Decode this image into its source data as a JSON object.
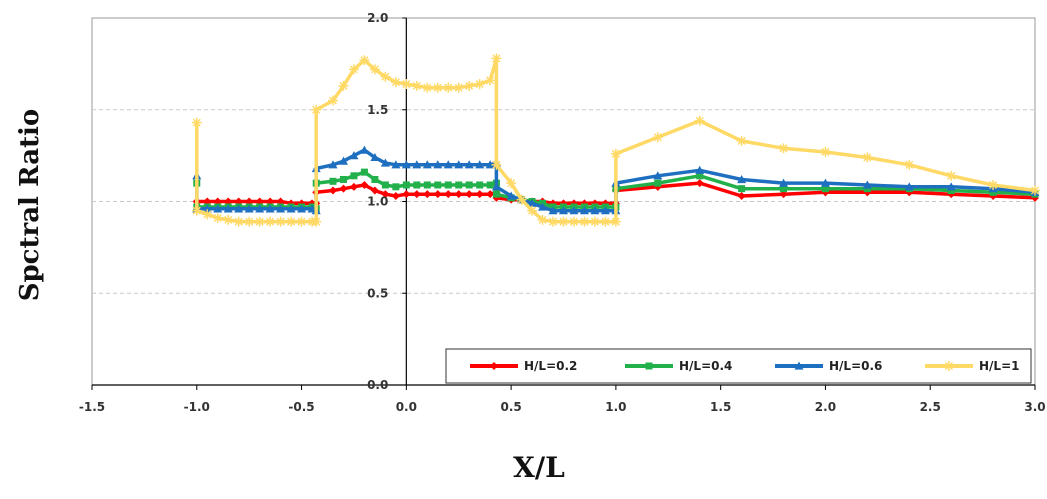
{
  "chart_data": {
    "type": "line",
    "xlabel": "X/L",
    "ylabel": "Spctral Ratio",
    "xlim": [
      -1.5,
      3.0
    ],
    "ylim": [
      0.0,
      2.0
    ],
    "xticks": [
      "-1.5",
      "-1.0",
      "-0.5",
      "0.0",
      "0.5",
      "1.0",
      "1.5",
      "2.0",
      "2.5",
      "3.0"
    ],
    "yticks": [
      "0.0",
      "0.5",
      "1.0",
      "1.5",
      "2.0"
    ],
    "grid": true,
    "legend_position": "bottom-right",
    "series": [
      {
        "name": "H/L=0.2",
        "color": "#ff0000",
        "marker": "diamond",
        "x": [
          -1.0,
          -1.0,
          -0.95,
          -0.9,
          -0.85,
          -0.8,
          -0.75,
          -0.7,
          -0.65,
          -0.6,
          -0.55,
          -0.5,
          -0.45,
          -0.43,
          -0.43,
          -0.35,
          -0.3,
          -0.25,
          -0.2,
          -0.15,
          -0.1,
          -0.05,
          0.0,
          0.05,
          0.1,
          0.15,
          0.2,
          0.25,
          0.3,
          0.35,
          0.4,
          0.43,
          0.43,
          0.5,
          0.55,
          0.6,
          0.65,
          0.7,
          0.75,
          0.8,
          0.85,
          0.9,
          0.95,
          1.0,
          1.0,
          1.2,
          1.4,
          1.6,
          1.8,
          2.0,
          2.2,
          2.4,
          2.6,
          2.8,
          3.0
        ],
        "y": [
          1.0,
          1.0,
          1.0,
          1.0,
          1.0,
          1.0,
          1.0,
          1.0,
          1.0,
          1.0,
          0.99,
          0.99,
          0.99,
          0.99,
          1.05,
          1.06,
          1.07,
          1.08,
          1.09,
          1.06,
          1.04,
          1.03,
          1.04,
          1.04,
          1.04,
          1.04,
          1.04,
          1.04,
          1.04,
          1.04,
          1.04,
          1.05,
          1.02,
          1.01,
          1.01,
          1.0,
          1.0,
          0.99,
          0.99,
          0.99,
          0.99,
          0.99,
          0.99,
          0.99,
          1.06,
          1.08,
          1.1,
          1.03,
          1.04,
          1.05,
          1.05,
          1.05,
          1.04,
          1.03,
          1.02
        ]
      },
      {
        "name": "H/L=0.4",
        "color": "#22b04a",
        "marker": "square",
        "x": [
          -1.0,
          -1.0,
          -0.95,
          -0.9,
          -0.85,
          -0.8,
          -0.75,
          -0.7,
          -0.65,
          -0.6,
          -0.55,
          -0.5,
          -0.45,
          -0.43,
          -0.43,
          -0.35,
          -0.3,
          -0.25,
          -0.2,
          -0.15,
          -0.1,
          -0.05,
          0.0,
          0.05,
          0.1,
          0.15,
          0.2,
          0.25,
          0.3,
          0.35,
          0.4,
          0.43,
          0.43,
          0.5,
          0.55,
          0.6,
          0.65,
          0.7,
          0.75,
          0.8,
          0.85,
          0.9,
          0.95,
          1.0,
          1.0,
          1.2,
          1.4,
          1.6,
          1.8,
          2.0,
          2.2,
          2.4,
          2.6,
          2.8,
          3.0
        ],
        "y": [
          1.1,
          0.97,
          0.97,
          0.97,
          0.97,
          0.97,
          0.97,
          0.97,
          0.97,
          0.97,
          0.97,
          0.97,
          0.97,
          0.96,
          1.1,
          1.11,
          1.12,
          1.14,
          1.16,
          1.12,
          1.09,
          1.08,
          1.09,
          1.09,
          1.09,
          1.09,
          1.09,
          1.09,
          1.09,
          1.09,
          1.09,
          1.1,
          1.04,
          1.02,
          1.01,
          1.0,
          0.99,
          0.97,
          0.97,
          0.97,
          0.97,
          0.97,
          0.97,
          0.97,
          1.07,
          1.1,
          1.14,
          1.07,
          1.07,
          1.07,
          1.07,
          1.07,
          1.06,
          1.05,
          1.04
        ]
      },
      {
        "name": "H/L=0.6",
        "color": "#1f6fc0",
        "marker": "triangle",
        "x": [
          -1.0,
          -1.0,
          -0.95,
          -0.9,
          -0.85,
          -0.8,
          -0.75,
          -0.7,
          -0.65,
          -0.6,
          -0.55,
          -0.5,
          -0.45,
          -0.43,
          -0.43,
          -0.35,
          -0.3,
          -0.25,
          -0.2,
          -0.15,
          -0.1,
          -0.05,
          0.0,
          0.05,
          0.1,
          0.15,
          0.2,
          0.25,
          0.3,
          0.35,
          0.4,
          0.43,
          0.43,
          0.5,
          0.55,
          0.6,
          0.65,
          0.7,
          0.75,
          0.8,
          0.85,
          0.9,
          0.95,
          1.0,
          1.0,
          1.2,
          1.4,
          1.6,
          1.8,
          2.0,
          2.2,
          2.4,
          2.6,
          2.8,
          3.0
        ],
        "y": [
          1.14,
          0.96,
          0.96,
          0.96,
          0.96,
          0.96,
          0.96,
          0.96,
          0.96,
          0.96,
          0.96,
          0.96,
          0.96,
          0.95,
          1.18,
          1.2,
          1.22,
          1.25,
          1.28,
          1.24,
          1.21,
          1.2,
          1.2,
          1.2,
          1.2,
          1.2,
          1.2,
          1.2,
          1.2,
          1.2,
          1.2,
          1.21,
          1.08,
          1.03,
          1.01,
          0.99,
          0.97,
          0.95,
          0.95,
          0.95,
          0.95,
          0.95,
          0.95,
          0.95,
          1.1,
          1.14,
          1.17,
          1.12,
          1.1,
          1.1,
          1.09,
          1.08,
          1.08,
          1.07,
          1.05
        ]
      },
      {
        "name": "H/L=1",
        "color": "#ffd966",
        "marker": "star",
        "x": [
          -1.0,
          -1.0,
          -0.95,
          -0.9,
          -0.85,
          -0.8,
          -0.75,
          -0.7,
          -0.65,
          -0.6,
          -0.55,
          -0.5,
          -0.45,
          -0.43,
          -0.43,
          -0.35,
          -0.3,
          -0.25,
          -0.2,
          -0.15,
          -0.1,
          -0.05,
          0.0,
          0.05,
          0.1,
          0.15,
          0.2,
          0.25,
          0.3,
          0.35,
          0.4,
          0.43,
          0.43,
          0.5,
          0.55,
          0.6,
          0.65,
          0.7,
          0.75,
          0.8,
          0.85,
          0.9,
          0.95,
          1.0,
          1.0,
          1.2,
          1.4,
          1.6,
          1.8,
          2.0,
          2.2,
          2.4,
          2.6,
          2.8,
          3.0
        ],
        "y": [
          1.43,
          0.95,
          0.93,
          0.91,
          0.9,
          0.89,
          0.89,
          0.89,
          0.89,
          0.89,
          0.89,
          0.89,
          0.89,
          0.89,
          1.5,
          1.55,
          1.63,
          1.72,
          1.77,
          1.72,
          1.68,
          1.65,
          1.64,
          1.63,
          1.62,
          1.62,
          1.62,
          1.62,
          1.63,
          1.64,
          1.66,
          1.78,
          1.2,
          1.1,
          1.01,
          0.95,
          0.9,
          0.89,
          0.89,
          0.89,
          0.89,
          0.89,
          0.89,
          0.89,
          1.26,
          1.35,
          1.44,
          1.33,
          1.29,
          1.27,
          1.24,
          1.2,
          1.14,
          1.09,
          1.06
        ]
      }
    ]
  }
}
